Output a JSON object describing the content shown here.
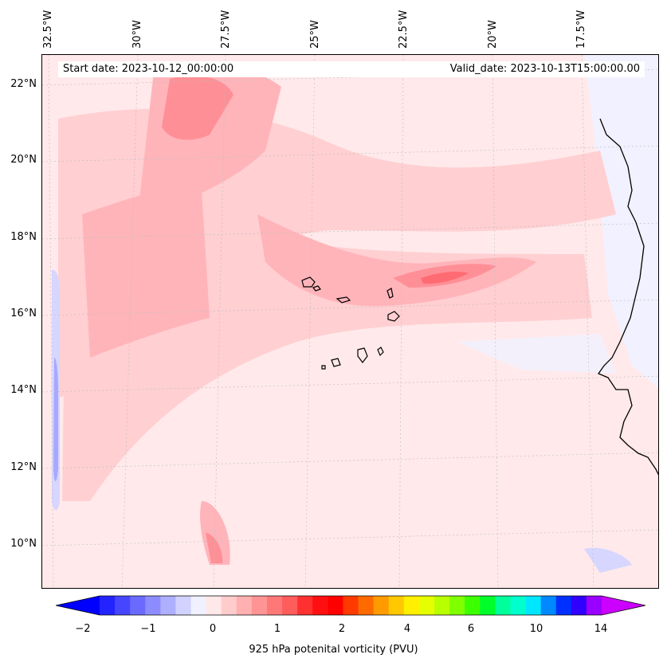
{
  "map": {
    "header": {
      "start_date": "Start date: 2023-10-12_00:00:00",
      "valid_date": "Valid_date: 2023-10-13T15:00:00.00"
    },
    "lon_labels": [
      "32.5°W",
      "30°W",
      "27.5°W",
      "25°W",
      "22.5°W",
      "20°W",
      "17.5°W"
    ],
    "lat_labels": [
      "22°N",
      "20°N",
      "18°N",
      "16°N",
      "14°N",
      "12°N",
      "10°N"
    ],
    "features": [
      "West Africa coastline",
      "Cape Verde islands"
    ]
  },
  "colorbar": {
    "label": "925 hPa potenital vorticity (PVU)",
    "tick_labels": [
      "−2",
      "−1",
      "0",
      "1",
      "2",
      "4",
      "6",
      "10",
      "14"
    ],
    "colors": [
      "#0000ff",
      "#2323ff",
      "#4646ff",
      "#6a6aff",
      "#8c8cff",
      "#afafff",
      "#d2d2ff",
      "#f0f0ff",
      "#ffe8e8",
      "#ffcccc",
      "#ffb0b0",
      "#ff9494",
      "#ff7878",
      "#ff5c5c",
      "#ff3030",
      "#ff1010",
      "#ff0000",
      "#ff3a00",
      "#ff6a00",
      "#ff9a00",
      "#ffc800",
      "#fff000",
      "#e6ff00",
      "#b8ff00",
      "#80ff00",
      "#3cff00",
      "#00ff2a",
      "#00ff9a",
      "#00ffcc",
      "#00e6ff",
      "#0088ff",
      "#0030ff",
      "#3000ff",
      "#9900ff",
      "#cc00ff"
    ]
  }
}
